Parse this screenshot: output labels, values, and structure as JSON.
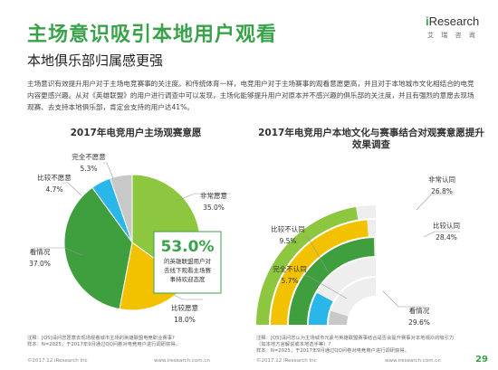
{
  "slide": {
    "title": "主场意识吸引本地用户观看",
    "subtitle": "本地俱乐部归属感更强",
    "intro": "主场意识有效提升用户对于主场电竞赛事的关注度。和传统体育一样，电竞用户对于主场赛事的观看意愿更高，并且对于本地城市文化相结合的电竞内容更感兴趣。从对《英雄联盟》的用户进行调查中可以发现，主场化能够提升用户对原本并不感兴趣的俱乐部的关注度，并且有强烈的意愿去现场观赛、去支持本地俱乐部，肯定会支持的用户达41%。",
    "page_number": "29"
  },
  "logo": {
    "i": "i",
    "brand": "Research",
    "sub": "艾 瑞 咨 询"
  },
  "colors": {
    "green_dark": "#3f9f3f",
    "green_light": "#8dc63f",
    "yellow": "#f2c200",
    "cyan": "#29b6e8",
    "gray": "#c8c8c8",
    "title_green": "#3aa24a"
  },
  "chart_data": [
    {
      "type": "pie",
      "title": "2017年电竞用户主场观赛意愿",
      "slices": [
        {
          "label": "非常愿意",
          "value": 35.0,
          "display": "35.0%",
          "color": "#8dc63f"
        },
        {
          "label": "比较愿意",
          "value": 18.0,
          "display": "18.0%",
          "color": "#f2c200"
        },
        {
          "label": "看情况",
          "value": 37.0,
          "display": "37.0%",
          "color": "#3f9f3f"
        },
        {
          "label": "比较不愿意",
          "value": 4.7,
          "display": "4.7%",
          "color": "#29b6e8"
        },
        {
          "label": "完全不愿意",
          "value": 5.3,
          "display": "5.3%",
          "color": "#c8c8c8"
        }
      ],
      "callout": {
        "value": "53.0%",
        "text": "的英雄联盟用户对去线下观看主场赛事持欢迎态度"
      }
    },
    {
      "type": "pie",
      "title": "2017年电竞用户本地文化与赛事结合对观赛意愿提升效果调查",
      "style": "semicircle-radial",
      "slices": [
        {
          "label": "非常认同",
          "value": 26.8,
          "display": "26.8%",
          "color": "#8dc63f"
        },
        {
          "label": "比较认同",
          "value": 28.4,
          "display": "28.4%",
          "color": "#f2c200"
        },
        {
          "label": "看情况",
          "value": 29.6,
          "display": "29.6%",
          "color": "#3f9f3f"
        },
        {
          "label": "比较不认同",
          "value": 9.5,
          "display": "9.5%",
          "color": "#29b6e8"
        },
        {
          "label": "完全不认同",
          "value": 5.7,
          "display": "5.7%",
          "color": "#c8c8c8"
        }
      ]
    }
  ],
  "notes": {
    "left": "注释：[Q5]请问您愿意去现场观看城市主场的英雄联盟电竞职业赛事?\n样本：N=2025；于2017年9月通过QQ问卷对电竞用户进行调研获得。",
    "right": "注释：[Q5]请问您认为主场城市元素与英雄联盟赛事结合是否会提升赛事对本地观众的吸引力（如本地方言解说或本地选手等）?\n样本：N=2025；于2017年9月通过QQ问卷对电竞用户进行调研获得。"
  },
  "footer": {
    "copyright": "©2017.12 iResearch Inc",
    "site": "www.iresearch.com.cn"
  }
}
